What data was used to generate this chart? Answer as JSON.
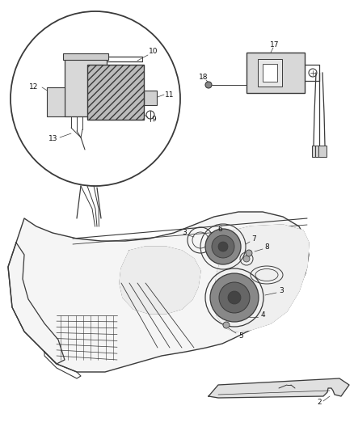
{
  "bg_color": "#ffffff",
  "line_color": "#3a3a3a",
  "figsize": [
    4.38,
    5.33
  ],
  "dpi": 100,
  "gray_light": "#c8c8c8",
  "gray_mid": "#888888",
  "gray_dark": "#555555"
}
